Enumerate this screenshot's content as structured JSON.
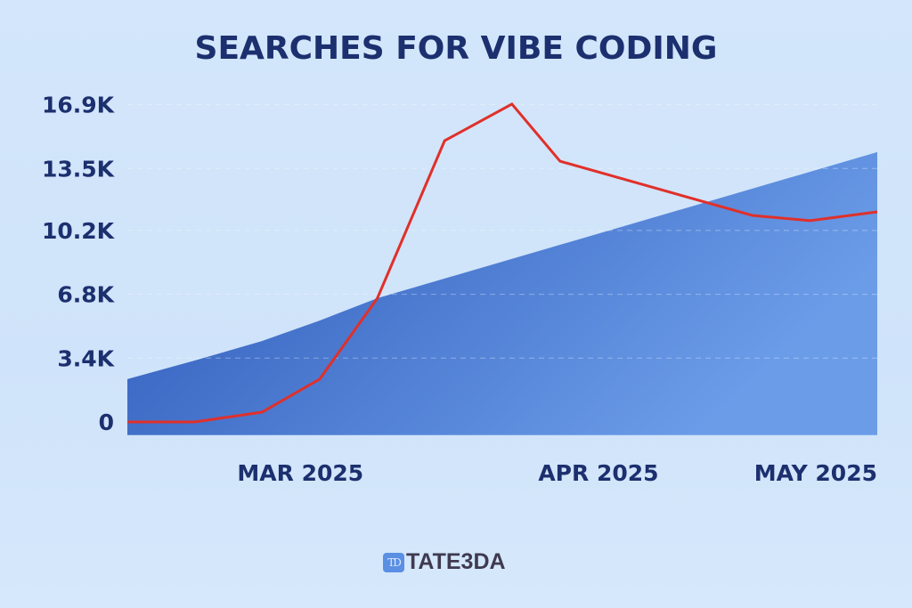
{
  "chart_data": {
    "type": "line",
    "title": "SEARCHES FOR VIBE CODING",
    "xlabel": "",
    "ylabel": "",
    "x_range": [
      "2025-02-11",
      "2025-04-30"
    ],
    "ylim": [
      -700,
      17900
    ],
    "y_ticks": [
      {
        "value": 0,
        "label": "0"
      },
      {
        "value": 3400,
        "label": "3.4K"
      },
      {
        "value": 6800,
        "label": "6.8K"
      },
      {
        "value": 10200,
        "label": "10.2K"
      },
      {
        "value": 13500,
        "label": "13.5K"
      },
      {
        "value": 16900,
        "label": "16.9K"
      }
    ],
    "x_ticks": [
      {
        "date": "2025-03-01",
        "label": "MAR 2025"
      },
      {
        "date": "2025-04-01",
        "label": "APR 2025"
      },
      {
        "date": "2025-04-30",
        "label": "MAY 2025"
      }
    ],
    "grid": "dashed horizontal",
    "series": [
      {
        "kind": "area",
        "color": "#2c58b8",
        "color_end": "#6b9ce8",
        "points": [
          {
            "x": "2025-02-11",
            "y": 2280
          },
          {
            "x": "2025-02-18",
            "y": 3270
          },
          {
            "x": "2025-02-25",
            "y": 4310
          },
          {
            "x": "2025-03-03",
            "y": 5400
          },
          {
            "x": "2025-03-09",
            "y": 6590
          },
          {
            "x": "2025-04-30",
            "y": 14370
          }
        ]
      },
      {
        "kind": "line",
        "color": "#e0302a",
        "points": [
          {
            "x": "2025-02-11",
            "y": 0
          },
          {
            "x": "2025-02-18",
            "y": 0
          },
          {
            "x": "2025-02-25",
            "y": 520
          },
          {
            "x": "2025-03-03",
            "y": 2280
          },
          {
            "x": "2025-03-09",
            "y": 6590
          },
          {
            "x": "2025-03-16",
            "y": 14980
          },
          {
            "x": "2025-03-23",
            "y": 16930
          },
          {
            "x": "2025-03-28",
            "y": 13890
          },
          {
            "x": "2025-04-17",
            "y": 11000
          },
          {
            "x": "2025-04-23",
            "y": 10720
          },
          {
            "x": "2025-04-30",
            "y": 11190
          }
        ]
      }
    ]
  },
  "logo": {
    "badge": "TD",
    "text": "TATE3DA"
  },
  "colors": {
    "title": "#1c2f6e",
    "background": "#d1e5fa"
  }
}
